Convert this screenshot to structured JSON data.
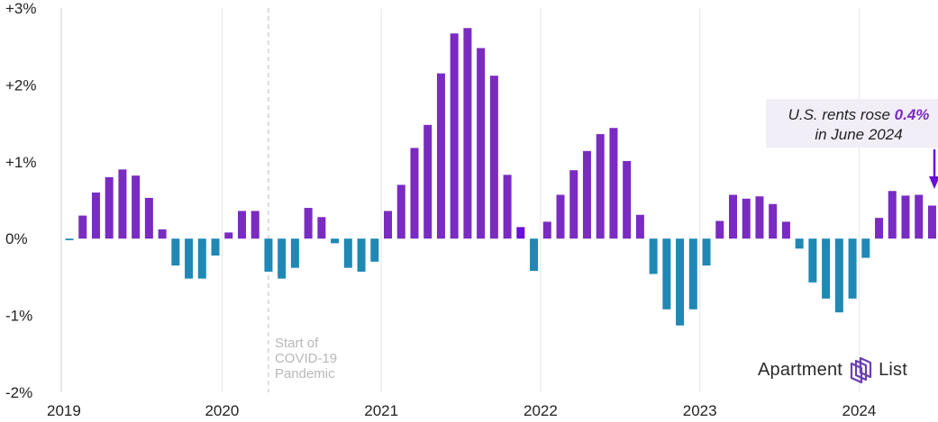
{
  "chart_data": {
    "type": "bar",
    "ylim": [
      -2,
      3
    ],
    "y_ticks": [
      {
        "value": 3,
        "label": "+3%"
      },
      {
        "value": 2,
        "label": "+2%"
      },
      {
        "value": 1,
        "label": "+1%"
      },
      {
        "value": 0,
        "label": "0%"
      },
      {
        "value": -1,
        "label": "-1%"
      },
      {
        "value": -2,
        "label": "-2%"
      }
    ],
    "x_ticks": [
      "2019",
      "2020",
      "2021",
      "2022",
      "2023",
      "2024"
    ],
    "grid": "vertical at year boundaries",
    "x": [
      "2019-01",
      "2019-02",
      "2019-03",
      "2019-04",
      "2019-05",
      "2019-06",
      "2019-07",
      "2019-08",
      "2019-09",
      "2019-10",
      "2019-11",
      "2019-12",
      "2020-01",
      "2020-02",
      "2020-03",
      "2020-04",
      "2020-05",
      "2020-06",
      "2020-07",
      "2020-08",
      "2020-09",
      "2020-10",
      "2020-11",
      "2020-12",
      "2021-01",
      "2021-02",
      "2021-03",
      "2021-04",
      "2021-05",
      "2021-06",
      "2021-07",
      "2021-08",
      "2021-09",
      "2021-10",
      "2021-11",
      "2021-12",
      "2022-01",
      "2022-02",
      "2022-03",
      "2022-04",
      "2022-05",
      "2022-06",
      "2022-07",
      "2022-08",
      "2022-09",
      "2022-10",
      "2022-11",
      "2022-12",
      "2023-01",
      "2023-02",
      "2023-03",
      "2023-04",
      "2023-05",
      "2023-06",
      "2023-07",
      "2023-08",
      "2023-09",
      "2023-10",
      "2023-11",
      "2023-12",
      "2024-01",
      "2024-02",
      "2024-03",
      "2024-04",
      "2024-05",
      "2024-06"
    ],
    "values": [
      -0.02,
      0.3,
      0.6,
      0.8,
      0.9,
      0.82,
      0.53,
      0.12,
      -0.35,
      -0.52,
      -0.52,
      -0.22,
      0.08,
      0.36,
      0.36,
      -0.43,
      -0.52,
      -0.38,
      0.4,
      0.28,
      -0.06,
      -0.38,
      -0.43,
      -0.3,
      0.36,
      0.7,
      1.18,
      1.48,
      2.15,
      2.67,
      2.74,
      2.48,
      2.12,
      0.83,
      0.15,
      -0.42,
      0.22,
      0.57,
      0.89,
      1.14,
      1.36,
      1.44,
      1.01,
      0.31,
      -0.46,
      -0.92,
      -1.13,
      -0.92,
      -0.35,
      0.23,
      0.57,
      0.52,
      0.55,
      0.45,
      0.22,
      -0.13,
      -0.57,
      -0.78,
      -0.96,
      -0.78,
      -0.25,
      0.27,
      0.62,
      0.56,
      0.57,
      0.43
    ],
    "colors": {
      "positive": "#7a2bc2",
      "negative": "#1f88b5",
      "highlight": "#6a0fd6"
    },
    "highlight_indices": [
      34
    ],
    "marker": {
      "x": "2020-04",
      "style": "dashed"
    },
    "annotations": [
      {
        "x": "2020-04",
        "lines": [
          "Start of",
          "COVID-19",
          "Pandemic"
        ]
      }
    ]
  },
  "callout": {
    "line1_prefix": "U.S. rents rose ",
    "line1_value": "0.4%",
    "line2": "in June 2024"
  },
  "brand": {
    "name_part1": "Apartment",
    "name_part2": "List",
    "icon": "apartment-list-logo-icon"
  }
}
